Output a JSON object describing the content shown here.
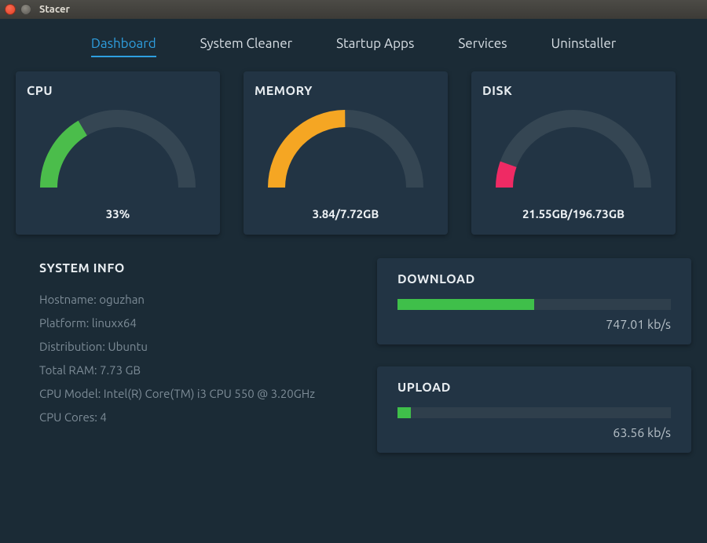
{
  "window": {
    "title": "Stacer"
  },
  "tabs": {
    "items": [
      {
        "label": "Dashboard",
        "active": true
      },
      {
        "label": "System Cleaner",
        "active": false
      },
      {
        "label": "Startup Apps",
        "active": false
      },
      {
        "label": "Services",
        "active": false
      },
      {
        "label": "Uninstaller",
        "active": false
      }
    ]
  },
  "colors": {
    "app_bg": "#1b2b36",
    "card_bg": "#223444",
    "gauge_track": "#354653",
    "cpu": "#4bbd4b",
    "memory": "#f5a623",
    "disk": "#ef2a64",
    "bar_track": "#2f3f4c",
    "download_fill": "#3fbf4a",
    "upload_fill": "#3fbf4a",
    "text_primary": "#e8edf1",
    "text_muted": "#7e8d98",
    "tab_active": "#2e9fe0"
  },
  "gauges": {
    "type": "semicircle",
    "stroke_width": 22,
    "cpu": {
      "title": "CPU",
      "percent": 33,
      "label": "33%",
      "color": "#4bbd4b"
    },
    "memory": {
      "title": "MEMORY",
      "percent": 49.74,
      "label": "3.84/7.72GB",
      "color": "#f5a623"
    },
    "disk": {
      "title": "DISK",
      "percent": 10.95,
      "label": "21.55GB/196.73GB",
      "color": "#ef2a64"
    }
  },
  "system_info": {
    "title": "SYSTEM INFO",
    "hostname_label": "Hostname: ",
    "hostname": "oguzhan",
    "platform_label": "Platform: ",
    "platform": "linuxx64",
    "distribution_label": "Distribution: ",
    "distribution": "Ubuntu",
    "total_ram_label": "Total RAM: ",
    "total_ram": "7.73 GB",
    "cpu_model_label": "CPU Model: ",
    "cpu_model": "Intel(R) Core(TM) i3 CPU 550 @ 3.20GHz",
    "cpu_cores_label": "CPU Cores: ",
    "cpu_cores": "4"
  },
  "network": {
    "download": {
      "title": "DOWNLOAD",
      "percent": 50,
      "value": "747.01 kb/s",
      "fill_color": "#3fbf4a"
    },
    "upload": {
      "title": "UPLOAD",
      "percent": 5,
      "value": "63.56 kb/s",
      "fill_color": "#3fbf4a"
    }
  }
}
